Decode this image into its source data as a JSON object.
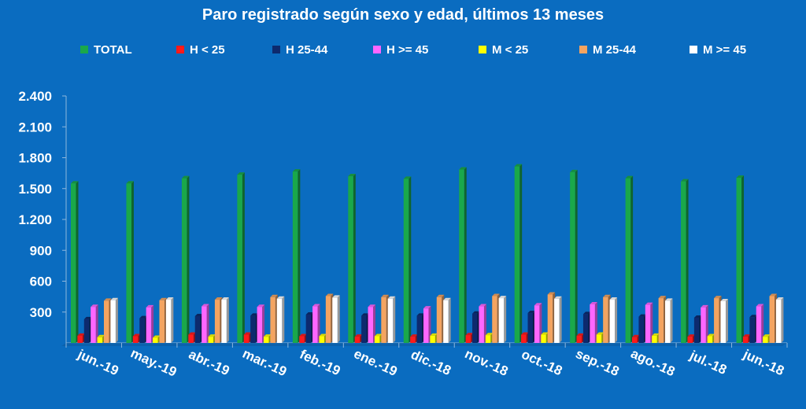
{
  "chart_data": {
    "type": "bar",
    "title": "Paro registrado según sexo y edad, últimos 13 meses",
    "categories": [
      "jun.-19",
      "may.-19",
      "abr.-19",
      "mar.-19",
      "feb.-19",
      "ene.-19",
      "dic.-18",
      "nov.-18",
      "oct.-18",
      "sep.-18",
      "ago.-18",
      "jul.-18",
      "jun.-18"
    ],
    "y_ticks": [
      "300",
      "600",
      "900",
      "1.200",
      "1.500",
      "1.800",
      "2.100",
      "2.400"
    ],
    "ylim": [
      0,
      2400
    ],
    "grid": false,
    "legend_position": "top",
    "background_color": "#0a6cc0",
    "series": [
      {
        "name": "TOTAL",
        "color": "#1aa84a",
        "values": [
          1550,
          1550,
          1600,
          1635,
          1665,
          1620,
          1595,
          1685,
          1715,
          1660,
          1600,
          1570,
          1605
        ]
      },
      {
        "name": "H < 25",
        "color": "#ff1a1a",
        "values": [
          70,
          65,
          80,
          80,
          65,
          60,
          60,
          75,
          80,
          70,
          55,
          60,
          60
        ]
      },
      {
        "name": "H 25-44",
        "color": "#0d2a6e",
        "values": [
          230,
          240,
          260,
          265,
          275,
          265,
          265,
          285,
          290,
          280,
          255,
          245,
          250
        ]
      },
      {
        "name": "H >= 45",
        "color": "#ff66ff",
        "values": [
          350,
          345,
          355,
          350,
          355,
          350,
          335,
          355,
          365,
          375,
          370,
          345,
          355
        ]
      },
      {
        "name": "M < 25",
        "color": "#ffff00",
        "values": [
          55,
          50,
          60,
          60,
          65,
          65,
          70,
          75,
          80,
          80,
          70,
          65,
          60
        ]
      },
      {
        "name": "M 25-44",
        "color": "#f4a460",
        "values": [
          410,
          415,
          420,
          445,
          455,
          445,
          445,
          455,
          470,
          445,
          435,
          435,
          455
        ]
      },
      {
        "name": "M >= 45",
        "color": "#ffffff",
        "values": [
          415,
          420,
          420,
          430,
          440,
          430,
          415,
          435,
          430,
          420,
          410,
          405,
          420
        ]
      }
    ]
  }
}
